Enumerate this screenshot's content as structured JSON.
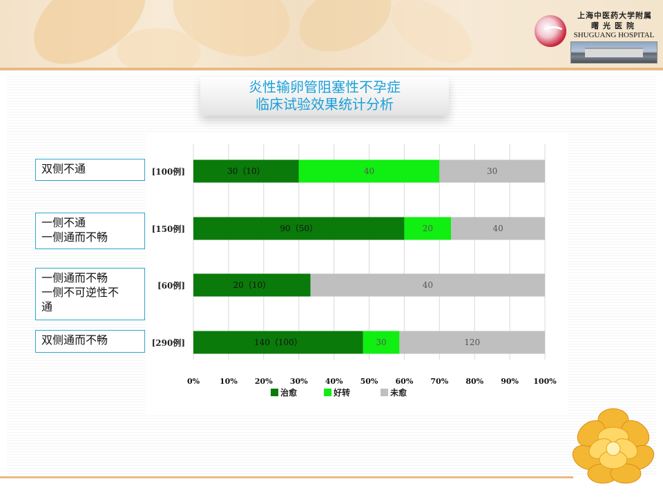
{
  "header": {
    "hospital_cn_line1": "上海中医药大学附属",
    "hospital_cn_line2": "曙光医院",
    "hospital_en": "SHUGUANG HOSPITAL"
  },
  "title": {
    "line1": "炎性输卵管阻塞性不孕症",
    "line2": "临床试验效果统计分析"
  },
  "categories_boxes": [
    {
      "lines": [
        "双侧不通"
      ]
    },
    {
      "lines": [
        "一侧不通",
        "一侧通而不畅"
      ]
    },
    {
      "lines": [
        "一侧通而不畅",
        "一侧不可逆性不",
        "通"
      ]
    },
    {
      "lines": [
        "双侧通而不畅"
      ]
    }
  ],
  "colors": {
    "cured": "#0a7a0a",
    "improved": "#11ee11",
    "not_cured": "#bfbfbf",
    "title": "#1b9fd8",
    "box_border": "#2aa6c9"
  },
  "chart_data": {
    "type": "bar",
    "orientation": "horizontal",
    "stacked": "percent",
    "categories": [
      "[100例]",
      "[150例]",
      "[60例]",
      "[290例]"
    ],
    "series": [
      {
        "name": "治愈",
        "values": [
          30,
          90,
          20,
          140
        ],
        "labels": [
          "30（10）",
          "90（50）",
          "20（10）",
          "140（100）"
        ]
      },
      {
        "name": "好转",
        "values": [
          40,
          20,
          0,
          30
        ],
        "labels": [
          "40",
          "20",
          "",
          "30"
        ]
      },
      {
        "name": "未愈",
        "values": [
          30,
          40,
          40,
          120
        ],
        "labels": [
          "30",
          "40",
          "40",
          "120"
        ]
      }
    ],
    "x_ticks": [
      "0%",
      "10%",
      "20%",
      "30%",
      "40%",
      "50%",
      "60%",
      "70%",
      "80%",
      "90%",
      "100%"
    ],
    "xlim": [
      0,
      100
    ],
    "grid": true,
    "legend_position": "bottom"
  }
}
